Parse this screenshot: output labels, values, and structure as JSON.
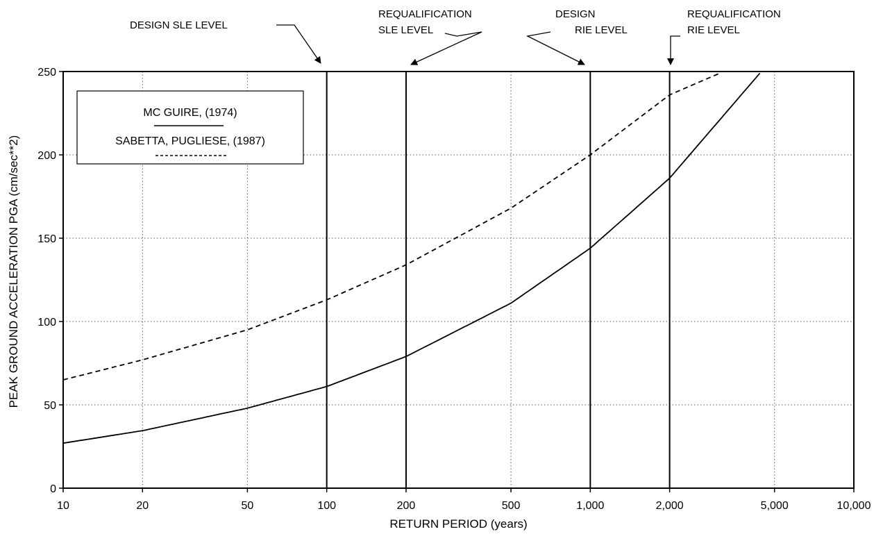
{
  "chart_data": {
    "type": "line",
    "title": "",
    "xlabel": "RETURN PERIOD (years)",
    "ylabel": "PEAK GROUND ACCELERATION PGA (cm/sec**2)",
    "xscale": "log",
    "xlim": [
      10,
      10000
    ],
    "ylim": [
      0,
      250
    ],
    "grid": true,
    "legend_position": "top-left",
    "x_ticks": [
      10,
      20,
      50,
      100,
      200,
      500,
      1000,
      2000,
      5000,
      10000
    ],
    "x_tick_labels": [
      "10",
      "20",
      "50",
      "100",
      "200",
      "500",
      "1,000",
      "2,000",
      "5,000",
      "10,000"
    ],
    "y_ticks": [
      0,
      50,
      100,
      150,
      200,
      250
    ],
    "y_tick_labels": [
      "0",
      "50",
      "100",
      "150",
      "200",
      "250"
    ],
    "series": [
      {
        "name": "MC GUIRE, (1974)",
        "style": "solid",
        "color": "#000000",
        "x": [
          10,
          20,
          50,
          100,
          200,
          500,
          1000,
          2000,
          4400
        ],
        "y": [
          27,
          34.5,
          48,
          61,
          79,
          111,
          144,
          186,
          249
        ]
      },
      {
        "name": "SABETTA, PUGLIESE, (1987)",
        "style": "dashed",
        "color": "#000000",
        "x": [
          10,
          20,
          50,
          100,
          200,
          500,
          1000,
          2000,
          3100
        ],
        "y": [
          65,
          77,
          95,
          113,
          134,
          168,
          200,
          236,
          249
        ]
      }
    ],
    "vertical_lines": [
      100,
      200,
      1000,
      2000
    ],
    "annotations": [
      {
        "lines": [
          "DESIGN SLE LEVEL"
        ],
        "target_x": 100
      },
      {
        "lines": [
          "REQUALIFICATION",
          "SLE LEVEL"
        ],
        "target_x": 200
      },
      {
        "lines": [
          "DESIGN",
          "RIE LEVEL"
        ],
        "target_x": 1000
      },
      {
        "lines": [
          "REQUALIFICATION",
          "RIE LEVEL"
        ],
        "target_x": 2000
      }
    ]
  }
}
